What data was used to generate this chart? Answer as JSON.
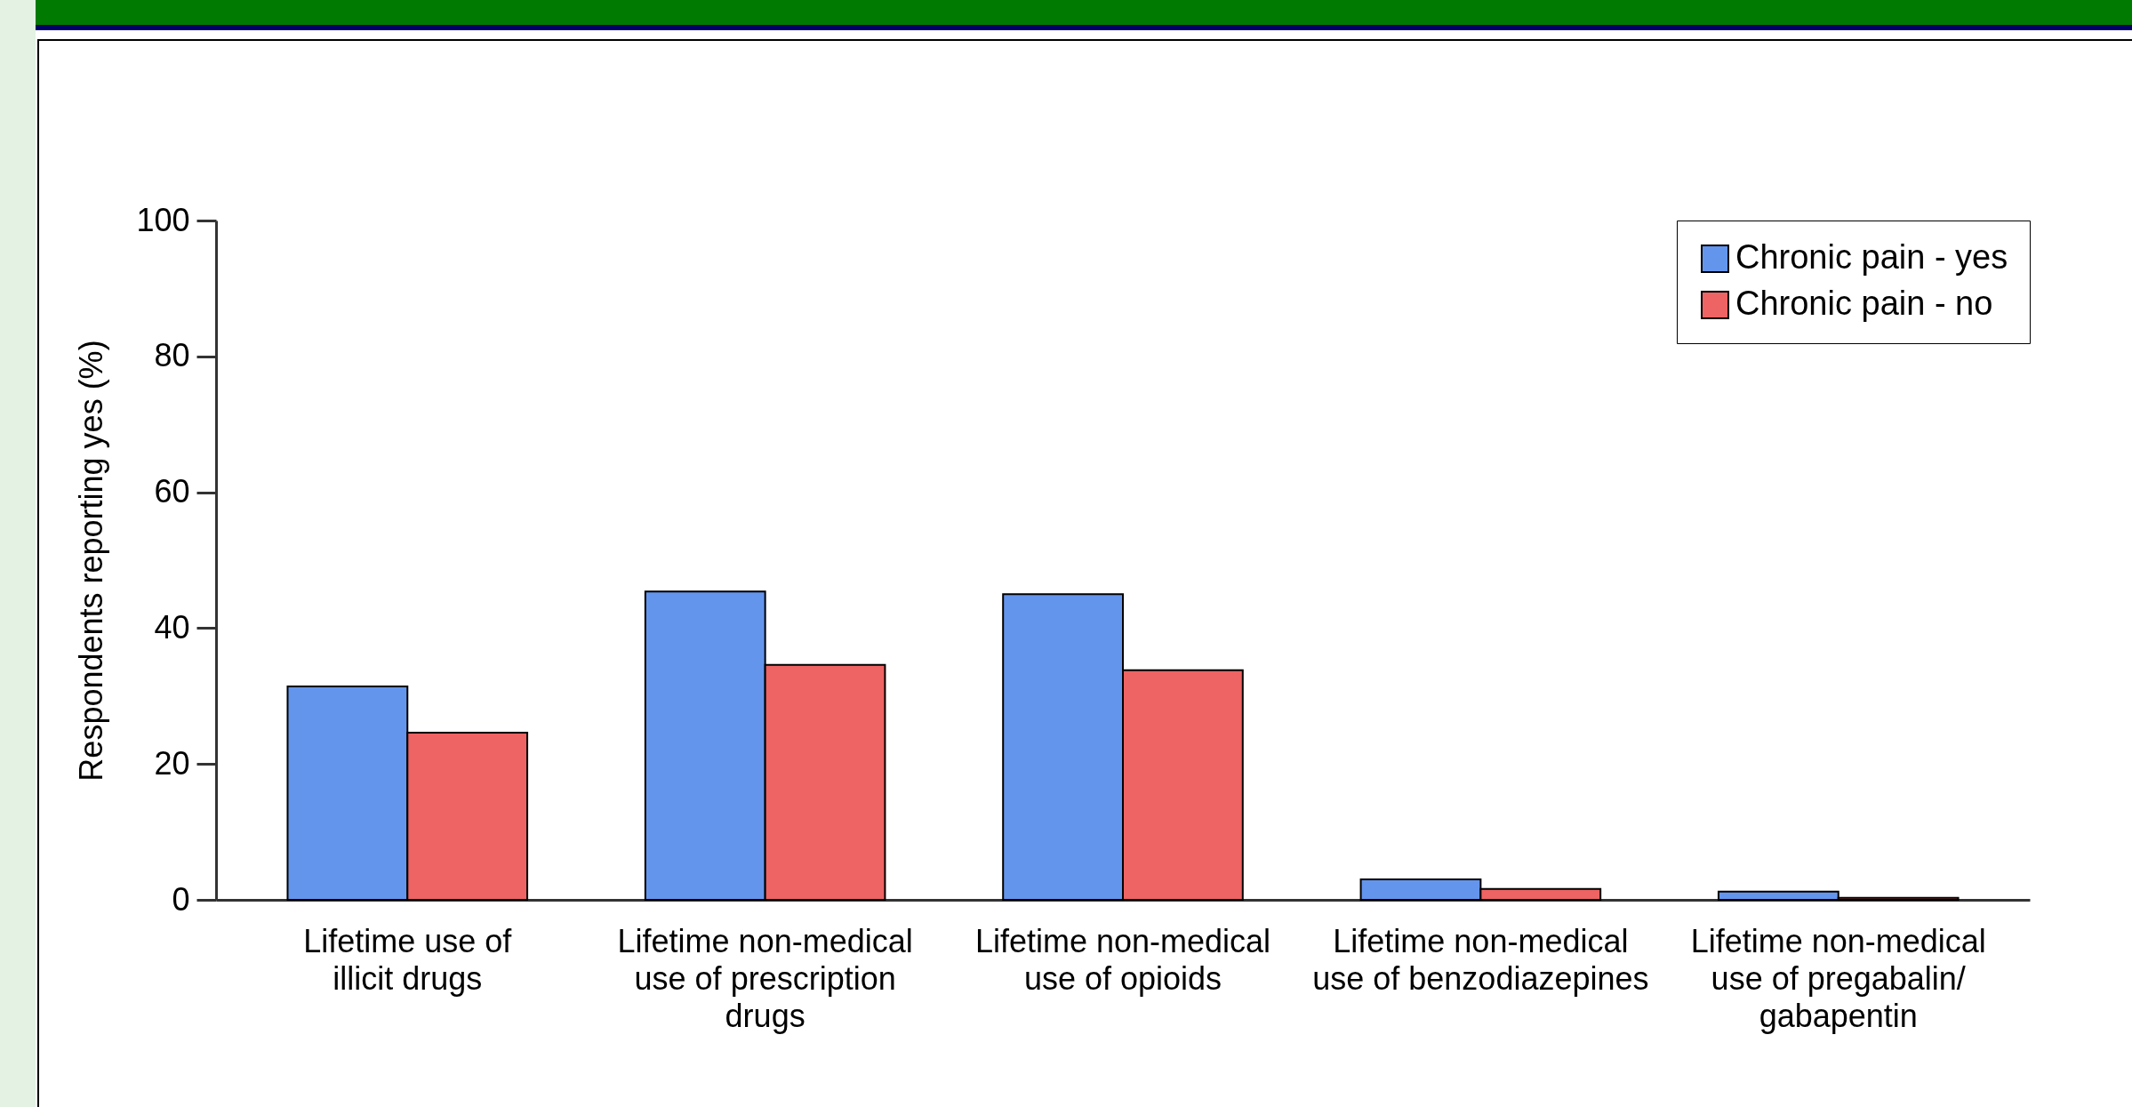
{
  "chart_data": {
    "type": "bar",
    "ylabel": "Respondents reporting yes (%)",
    "categories": [
      "Lifetime use of illicit drugs",
      "Lifetime non-medical use of prescription drugs",
      "Lifetime non-medical use of opioids",
      "Lifetime non-medical use of benzodiazepines",
      "Lifetime non-medical use of pregabalin/ gabapentin"
    ],
    "series": [
      {
        "name": "Chronic pain - yes",
        "color": "#6495ed",
        "values": [
          31.4,
          45.4,
          45,
          3,
          1.2
        ]
      },
      {
        "name": "Chronic pain - no",
        "color": "#ee6363",
        "values": [
          24.6,
          34.6,
          33.8,
          1.6,
          0.3
        ]
      }
    ],
    "ylim": [
      0,
      100
    ],
    "yticks": [
      0,
      20,
      40,
      60,
      80,
      100
    ],
    "grid": false,
    "legend": "top right"
  }
}
